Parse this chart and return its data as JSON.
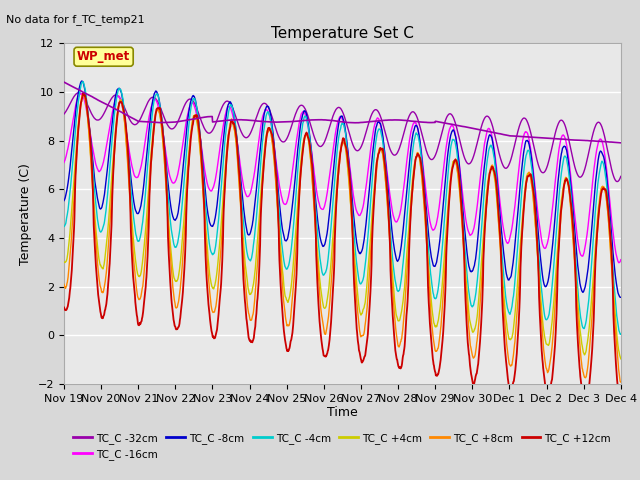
{
  "title": "Temperature Set C",
  "subtitle": "No data for f_TC_temp21",
  "ylabel": "Temperature (C)",
  "xlabel": "Time",
  "ylim": [
    -2,
    12
  ],
  "yticks": [
    -2,
    0,
    2,
    4,
    6,
    8,
    10,
    12
  ],
  "xtick_labels": [
    "Nov 19",
    "Nov 20",
    "Nov 21",
    "Nov 22",
    "Nov 23",
    "Nov 24",
    "Nov 25",
    "Nov 26",
    "Nov 27",
    "Nov 28",
    "Nov 29",
    "Nov 30",
    "Dec 1",
    "Dec 2",
    "Dec 3",
    "Dec 4"
  ],
  "wp_met_label": "WP_met",
  "wp_met_color": "#cc0000",
  "wp_met_box_color": "#ffff99",
  "wp_met_box_edge": "#888800",
  "background_color": "#d8d8d8",
  "plot_bg_color": "#e8e8e8",
  "grid_color": "#ffffff",
  "legend_entries": [
    {
      "label": "TC_C -32cm",
      "color": "#9900aa"
    },
    {
      "label": "TC_C -16cm",
      "color": "#ff00ff"
    },
    {
      "label": "TC_C -8cm",
      "color": "#0000cc"
    },
    {
      "label": "TC_C -4cm",
      "color": "#00cccc"
    },
    {
      "label": "TC_C +4cm",
      "color": "#cccc00"
    },
    {
      "label": "TC_C +8cm",
      "color": "#ff8800"
    },
    {
      "label": "TC_C +12cm",
      "color": "#cc0000"
    }
  ],
  "n_points": 1500
}
